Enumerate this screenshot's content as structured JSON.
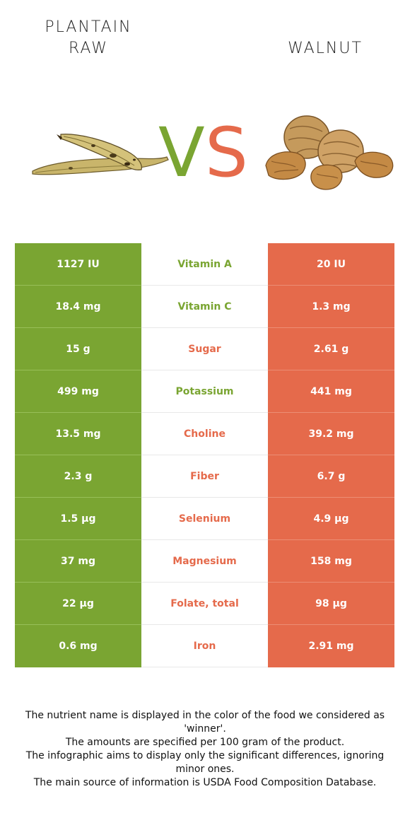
{
  "left_food": {
    "line1": "PLANTAIN",
    "line2": "RAW",
    "color": "#7aa532"
  },
  "right_food": {
    "name": "WALNUT",
    "color": "#e56a4b"
  },
  "vs": {
    "v": "V",
    "s": "S"
  },
  "rows": [
    {
      "left": "1127 IU",
      "nutrient": "Vitamin A",
      "right": "20 IU",
      "winner": "left"
    },
    {
      "left": "18.4 mg",
      "nutrient": "Vitamin C",
      "right": "1.3 mg",
      "winner": "left"
    },
    {
      "left": "15 g",
      "nutrient": "Sugar",
      "right": "2.61 g",
      "winner": "right"
    },
    {
      "left": "499 mg",
      "nutrient": "Potassium",
      "right": "441 mg",
      "winner": "left"
    },
    {
      "left": "13.5 mg",
      "nutrient": "Choline",
      "right": "39.2 mg",
      "winner": "right"
    },
    {
      "left": "2.3 g",
      "nutrient": "Fiber",
      "right": "6.7 g",
      "winner": "right"
    },
    {
      "left": "1.5 µg",
      "nutrient": "Selenium",
      "right": "4.9 µg",
      "winner": "right"
    },
    {
      "left": "37 mg",
      "nutrient": "Magnesium",
      "right": "158 mg",
      "winner": "right"
    },
    {
      "left": "22 µg",
      "nutrient": "Folate, total",
      "right": "98 µg",
      "winner": "right"
    },
    {
      "left": "0.6 mg",
      "nutrient": "Iron",
      "right": "2.91 mg",
      "winner": "right"
    }
  ],
  "footnote": [
    "The nutrient name is displayed in the color of the food we considered as 'winner'.",
    "The amounts are specified per 100 gram of the product.",
    "The infographic aims to display only the significant differences, ignoring minor ones.",
    "The main source of information is USDA Food Composition Database."
  ]
}
